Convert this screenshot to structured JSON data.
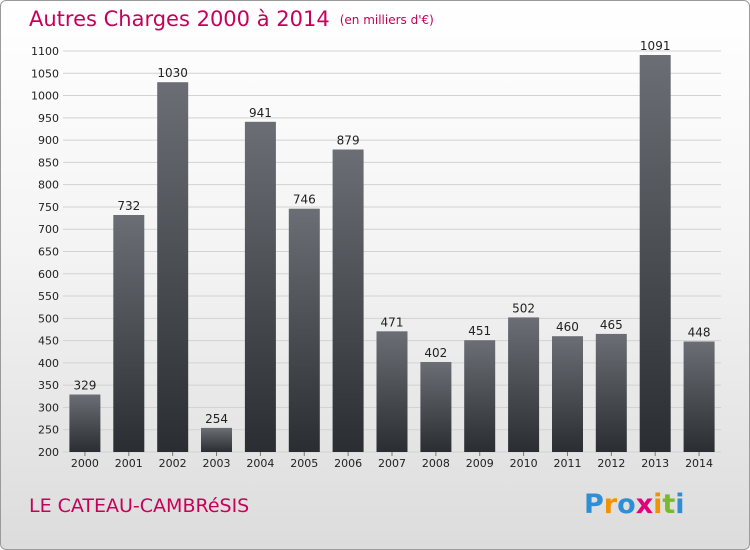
{
  "title": "Autres Charges 2000 à 2014",
  "subtitle": "(en milliers d'€)",
  "location": "LE CATEAU-CAMBRéSIS",
  "brand": {
    "letters": [
      "P",
      "r",
      "o",
      "x",
      "i",
      "t",
      "i"
    ],
    "colors": [
      "#2f8fd6",
      "#f39200",
      "#2f8fd6",
      "#e4007d",
      "#f39200",
      "#7ab82c",
      "#2f8fd6"
    ]
  },
  "colors": {
    "bar_top": "#6b6f75",
    "bar_bottom": "#2a2d31",
    "text": "#222222",
    "accent": "#c8005a"
  },
  "chart_data": {
    "type": "bar",
    "title": "Autres Charges 2000 à 2014",
    "ylabel": "",
    "xlabel": "",
    "categories": [
      "2000",
      "2001",
      "2002",
      "2003",
      "2004",
      "2005",
      "2006",
      "2007",
      "2008",
      "2009",
      "2010",
      "2011",
      "2012",
      "2013",
      "2014"
    ],
    "values": [
      329,
      732,
      1030,
      254,
      941,
      746,
      879,
      471,
      402,
      451,
      502,
      460,
      465,
      1091,
      448
    ],
    "ylim": [
      200,
      1100
    ],
    "yticks": [
      200,
      250,
      300,
      350,
      400,
      450,
      500,
      550,
      600,
      650,
      700,
      750,
      800,
      850,
      900,
      950,
      1000,
      1050,
      1100
    ],
    "grid": true,
    "legend": "none"
  }
}
